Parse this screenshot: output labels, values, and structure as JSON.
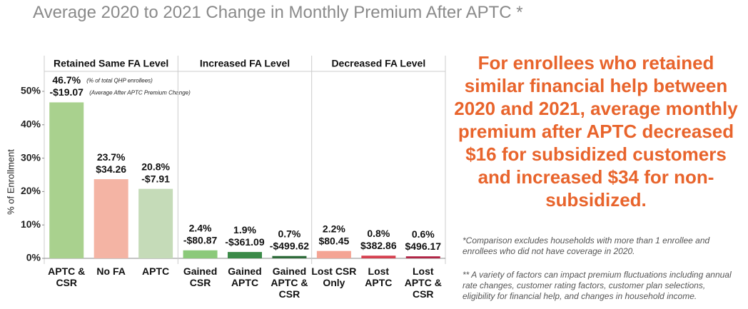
{
  "chart_data": {
    "type": "bar",
    "title": "Average 2020 to 2021 Change in Monthly Premium After APTC *",
    "y_label": "% of Enrollment",
    "ylim": [
      0,
      50
    ],
    "yticks": [
      {
        "value": 0,
        "label": "0%"
      },
      {
        "value": 10,
        "label": "10%"
      },
      {
        "value": 20,
        "label": "20%"
      },
      {
        "value": 30,
        "label": "30%"
      },
      {
        "value": 40,
        "label": "40%"
      },
      {
        "value": 50,
        "label": "50%"
      }
    ],
    "pct_note": "(% of total QHP enrollees)",
    "change_note": "(Average After APTC Premium Change)",
    "groups": [
      {
        "name": "Retained Same FA Level",
        "categories": [
          "APTC & CSR",
          "No FA",
          "APTC"
        ],
        "values": [
          46.7,
          23.7,
          20.8
        ],
        "value_labels": [
          "46.7%",
          "23.7%",
          "20.8%"
        ],
        "change_labels": [
          "-$19.07",
          "$34.26",
          "-$7.91"
        ],
        "colors": [
          "#a9d18e",
          "#f4b4a4",
          "#c5dbb8"
        ]
      },
      {
        "name": "Increased FA Level",
        "categories": [
          "Gained CSR",
          "Gained APTC",
          "Gained APTC & CSR"
        ],
        "values": [
          2.4,
          1.9,
          0.7
        ],
        "value_labels": [
          "2.4%",
          "1.9%",
          "0.7%"
        ],
        "change_labels": [
          "-$80.87",
          "-$361.09",
          "-$499.62"
        ],
        "colors": [
          "#8bc97a",
          "#3b8a48",
          "#2e6b3a"
        ]
      },
      {
        "name": "Decreased FA Level",
        "categories": [
          "Lost CSR Only",
          "Lost APTC",
          "Lost APTC & CSR"
        ],
        "values": [
          2.2,
          0.8,
          0.6
        ],
        "value_labels": [
          "2.2%",
          "0.8%",
          "0.6%"
        ],
        "change_labels": [
          "$80.45",
          "$382.86",
          "$496.17"
        ],
        "colors": [
          "#f4a494",
          "#d6404f",
          "#b02545"
        ]
      }
    ]
  },
  "callout": "For enrollees who retained similar financial help between 2020 and 2021, average monthly premium after APTC decreased $16 for subsidized customers and increased $34 for non-subsidized.",
  "notes": [
    "*Comparison excludes households with more than 1 enrollee and enrollees who did not have coverage in 2020.",
    "** A variety of factors can impact premium fluctuations including annual rate changes, customer rating factors, customer plan selections, eligibility for financial help, and changes in household income."
  ]
}
